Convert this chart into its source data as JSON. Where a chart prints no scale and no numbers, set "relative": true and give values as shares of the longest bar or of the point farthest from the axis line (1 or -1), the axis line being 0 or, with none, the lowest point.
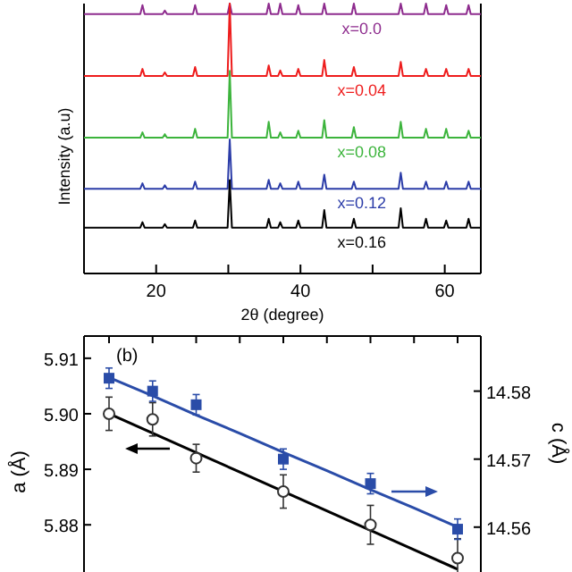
{
  "chart_data": [
    {
      "type": "line",
      "relative": true,
      "xlabel": "2θ (degree)",
      "ylabel": "Intensity (a.u)",
      "xlim": [
        10,
        65
      ],
      "xticks": [
        20,
        {
          "value": 30,
          "label": null
        },
        40,
        {
          "value": 50,
          "label": null
        },
        60
      ],
      "tick_labels": "x",
      "x": [
        10,
        17.8,
        18.1,
        18.4,
        20.9,
        21.2,
        21.5,
        25.1,
        25.4,
        25.7,
        29.9,
        30.2,
        30.5,
        35.3,
        35.6,
        35.9,
        36.9,
        37.2,
        37.5,
        39.4,
        39.7,
        40.0,
        43.0,
        43.3,
        43.6,
        47.1,
        47.4,
        47.7,
        53.6,
        53.9,
        54.2,
        57.1,
        57.4,
        57.7,
        59.9,
        60.2,
        60.5,
        63.0,
        63.3,
        63.6,
        65
      ],
      "series": [
        {
          "name": "x=0.0",
          "color": "#8e2c8e",
          "values": [
            0.961,
            0.961,
            0.994,
            0.961,
            0.961,
            0.974,
            0.961,
            0.961,
            0.994,
            0.961,
            0.961,
            1,
            0.961,
            0.961,
            1,
            0.961,
            0.961,
            1,
            0.961,
            0.961,
            0.994,
            0.961,
            0.961,
            1,
            0.961,
            0.961,
            1,
            0.961,
            0.961,
            1,
            0.961,
            0.961,
            1,
            0.961,
            0.961,
            0.994,
            0.961,
            0.961,
            0.994,
            0.961,
            0.961
          ]
        },
        {
          "name": "x=0.04",
          "color": "#ee1c1c",
          "values": [
            0.732,
            0.732,
            0.758,
            0.732,
            0.732,
            0.745,
            0.732,
            0.732,
            0.765,
            0.732,
            0.732,
            1,
            0.732,
            0.732,
            0.771,
            0.732,
            0.732,
            0.752,
            0.732,
            0.732,
            0.758,
            0.732,
            0.732,
            0.791,
            0.732,
            0.732,
            0.765,
            0.732,
            0.732,
            0.784,
            0.732,
            0.732,
            0.758,
            0.732,
            0.732,
            0.758,
            0.732,
            0.732,
            0.758,
            0.732,
            0.732
          ]
        },
        {
          "name": "x=0.08",
          "color": "#3cb43c",
          "values": [
            0.503,
            0.503,
            0.523,
            0.503,
            0.503,
            0.516,
            0.503,
            0.503,
            0.536,
            0.503,
            0.503,
            0.751,
            0.503,
            0.503,
            0.562,
            0.503,
            0.503,
            0.523,
            0.503,
            0.503,
            0.529,
            0.503,
            0.503,
            0.568,
            0.503,
            0.503,
            0.542,
            0.503,
            0.503,
            0.562,
            0.503,
            0.503,
            0.536,
            0.503,
            0.503,
            0.536,
            0.503,
            0.503,
            0.529,
            0.503,
            0.503
          ]
        },
        {
          "name": "x=0.12",
          "color": "#2b3ca8",
          "values": [
            0.314,
            0.314,
            0.334,
            0.314,
            0.314,
            0.327,
            0.314,
            0.314,
            0.34,
            0.314,
            0.314,
            0.497,
            0.314,
            0.314,
            0.347,
            0.314,
            0.314,
            0.334,
            0.314,
            0.314,
            0.34,
            0.314,
            0.314,
            0.366,
            0.314,
            0.314,
            0.34,
            0.314,
            0.314,
            0.373,
            0.314,
            0.314,
            0.34,
            0.314,
            0.314,
            0.34,
            0.314,
            0.314,
            0.34,
            0.314,
            0.314
          ]
        },
        {
          "name": "x=0.16",
          "color": "#000000",
          "values": [
            0.17,
            0.17,
            0.19,
            0.17,
            0.17,
            0.183,
            0.17,
            0.17,
            0.196,
            0.17,
            0.17,
            0.346,
            0.17,
            0.17,
            0.203,
            0.17,
            0.17,
            0.19,
            0.17,
            0.17,
            0.196,
            0.17,
            0.17,
            0.235,
            0.17,
            0.17,
            0.203,
            0.17,
            0.17,
            0.242,
            0.17,
            0.17,
            0.203,
            0.17,
            0.17,
            0.196,
            0.17,
            0.17,
            0.203,
            0.17,
            0.17
          ]
        }
      ]
    },
    {
      "type": "scatter",
      "ylabel": "a (Å)",
      "y2label": "c (Å)",
      "annotations": [
        "(b)"
      ],
      "tick_labels": "y",
      "categories": [
        null,
        null,
        null,
        null,
        null,
        null,
        null,
        null,
        null
      ],
      "ylim": [
        5.8715,
        5.914
      ],
      "yticks": [
        5.88,
        5.89,
        {
          "value": 5.9,
          "label": "5.90"
        },
        5.91
      ],
      "y2lim": [
        14.5534,
        14.5881
      ],
      "y2ticks": [
        14.56,
        14.57,
        14.58
      ],
      "series": [
        {
          "type": "line",
          "color": "#000000",
          "values": [
            5.9,
            5.8965,
            5.893,
            5.8895,
            5.886,
            5.8825,
            5.879,
            5.8755,
            5.872
          ]
        },
        {
          "type": "line",
          "color": "#2a4ca8",
          "axis": "y2",
          "values": [
            14.582,
            14.5793,
            14.5765,
            14.5738,
            14.571,
            14.5683,
            14.5655,
            14.5628,
            14.56
          ]
        },
        {
          "type": "scatter",
          "color": "#333333",
          "marker": "circle",
          "values": [
            5.9,
            5.899,
            5.892,
            null,
            5.886,
            null,
            5.88,
            null,
            5.874
          ],
          "errors": [
            0.003,
            0.003,
            0.0025,
            null,
            0.003,
            null,
            0.0035,
            null,
            0.0035
          ]
        },
        {
          "type": "scatter",
          "color": "#2a4ca8",
          "marker": "square",
          "axis": "y2",
          "values": [
            14.5819,
            14.58,
            14.578,
            null,
            14.57,
            null,
            14.5664,
            null,
            14.5597
          ],
          "errors": [
            0.0015,
            0.0015,
            0.0015,
            null,
            0.0015,
            null,
            0.0015,
            null,
            0.0015
          ]
        }
      ]
    }
  ]
}
